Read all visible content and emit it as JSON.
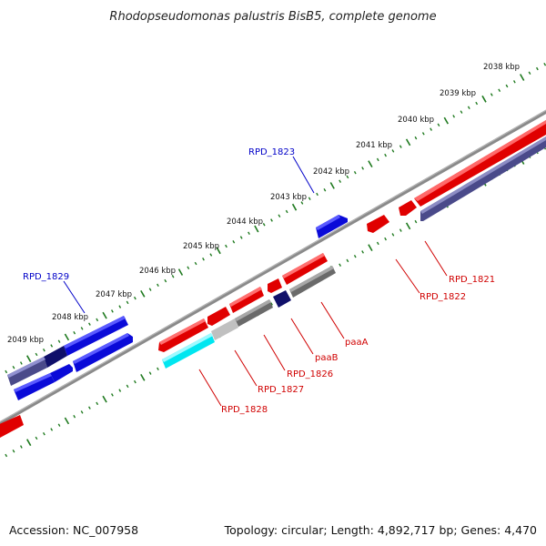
{
  "title": "Rhodopseudomonas palustris BisB5, complete genome",
  "colors": {
    "backbone": "#8a8a8a",
    "tick": "#1f7a1f",
    "forward_red": "#e00000",
    "reverse_blue": "#0a0ad8",
    "navy": "#10106a",
    "slate": "#4a4a8a",
    "gray": "#6a6a6a",
    "cyan": "#00e6f0",
    "label_red": "#d00000",
    "label_blue": "#0000c8"
  },
  "scale_labels": [
    {
      "text": "2038 kbp",
      "kbp": 2038
    },
    {
      "text": "2039 kbp",
      "kbp": 2039
    },
    {
      "text": "2040 kbp",
      "kbp": 2040
    },
    {
      "text": "2041 kbp",
      "kbp": 2041
    },
    {
      "text": "2042 kbp",
      "kbp": 2042
    },
    {
      "text": "2043 kbp",
      "kbp": 2043
    },
    {
      "text": "2044 kbp",
      "kbp": 2044
    },
    {
      "text": "2045 kbp",
      "kbp": 2045
    },
    {
      "text": "2046 kbp",
      "kbp": 2046
    },
    {
      "text": "2047 kbp",
      "kbp": 2047
    },
    {
      "text": "2048 kbp",
      "kbp": 2048
    },
    {
      "text": "2049 kbp",
      "kbp": 2049
    }
  ],
  "gene_labels": [
    {
      "text": "RPD_1823",
      "color": "#0000c8"
    },
    {
      "text": "RPD_1829",
      "color": "#0000c8"
    },
    {
      "text": "RPD_1821",
      "color": "#d00000"
    },
    {
      "text": "RPD_1822",
      "color": "#d00000"
    },
    {
      "text": "paaA",
      "color": "#d00000"
    },
    {
      "text": "paaB",
      "color": "#d00000"
    },
    {
      "text": "RPD_1826",
      "color": "#d00000"
    },
    {
      "text": "RPD_1827",
      "color": "#d00000"
    },
    {
      "text": "RPD_1828",
      "color": "#d00000"
    }
  ],
  "footer": {
    "accession": "Accession: NC_007958",
    "topology": "Topology: circular; Length: 4,892,717 bp; Genes: 4,470"
  }
}
